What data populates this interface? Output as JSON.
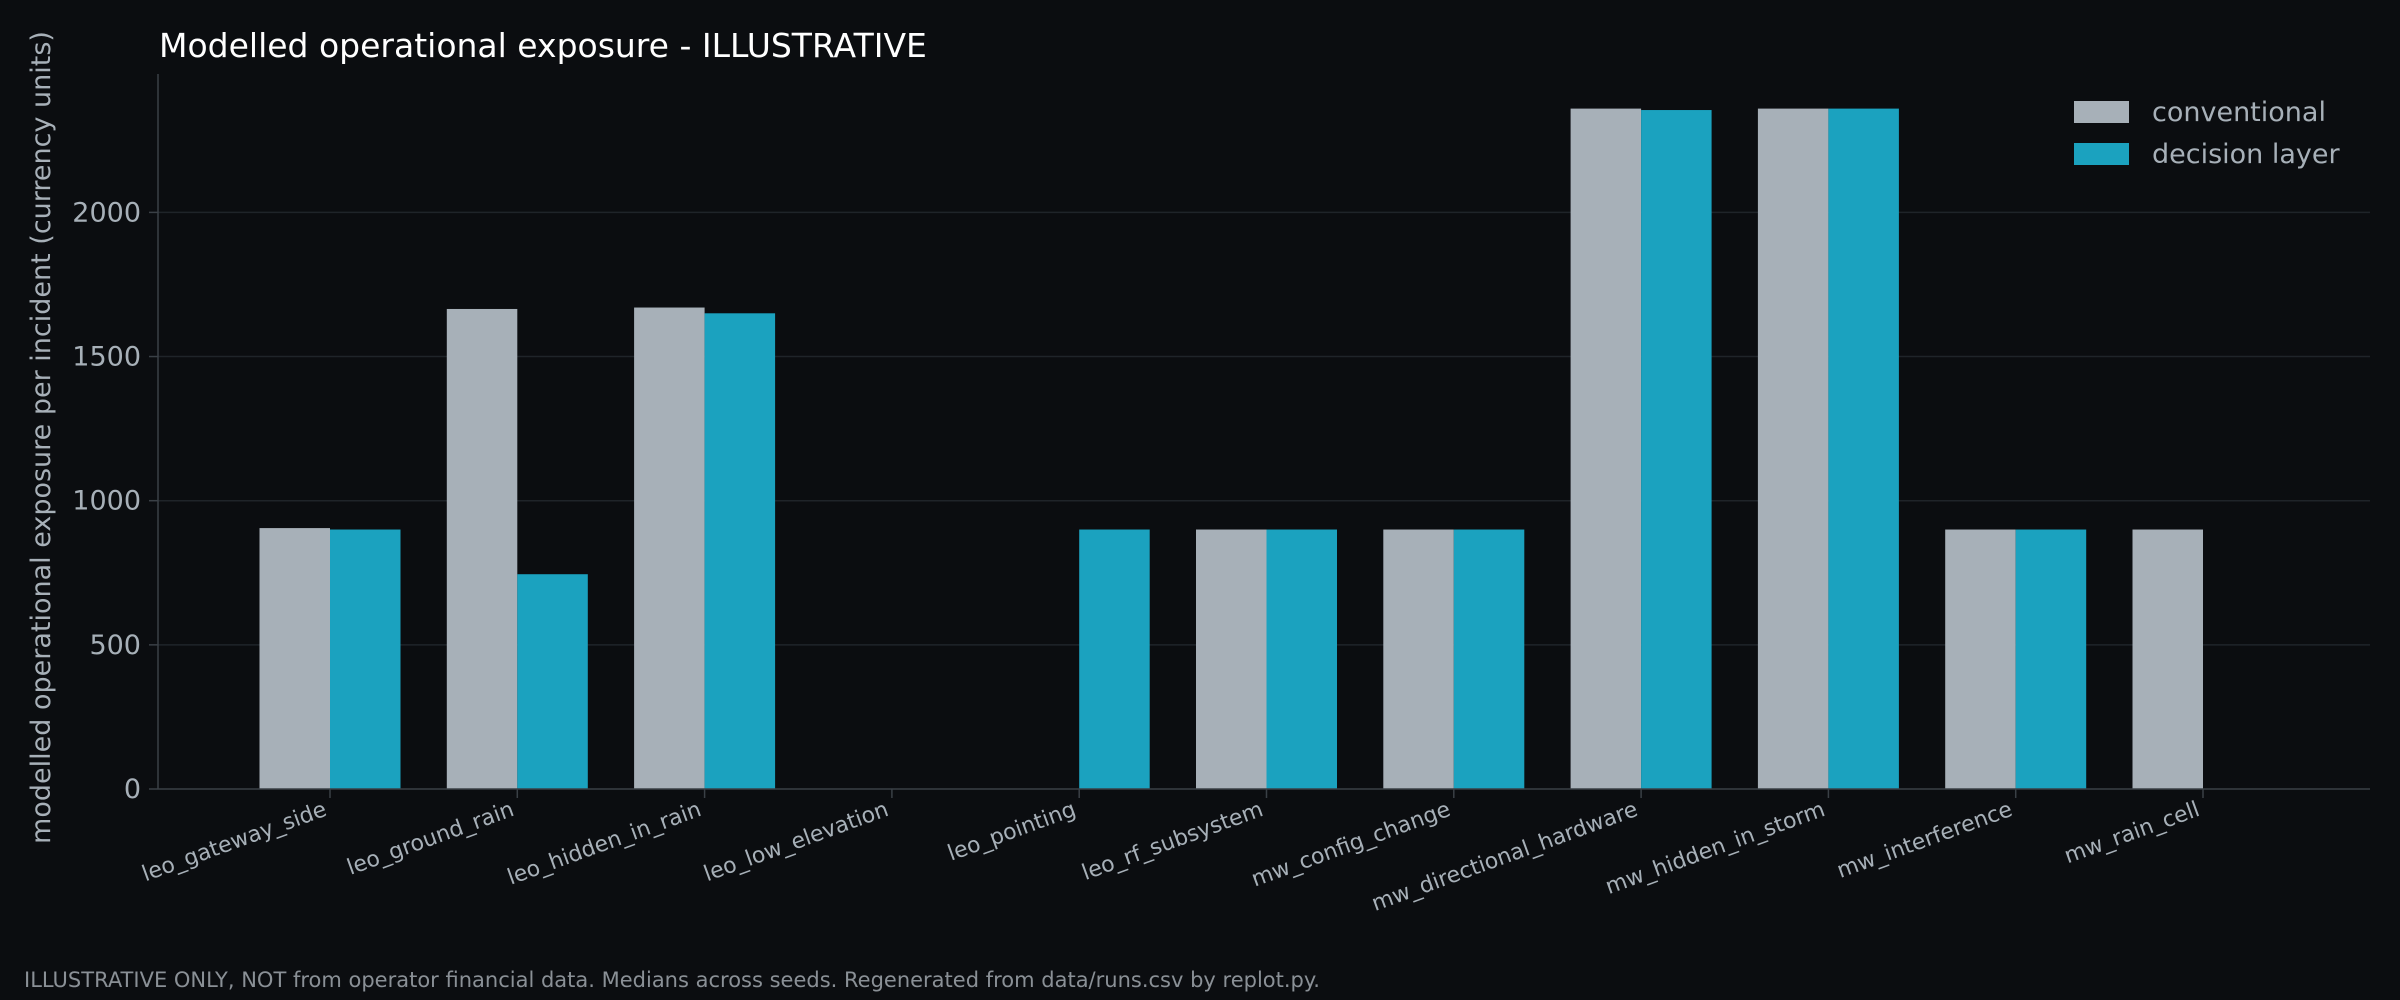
{
  "chart_data": {
    "type": "bar",
    "title": "Modelled operational exposure - ILLUSTRATIVE",
    "xlabel": "",
    "ylabel": "modelled operational exposure per incident (currency units)",
    "categories": [
      "leo_gateway_side",
      "leo_ground_rain",
      "leo_hidden_in_rain",
      "leo_low_elevation",
      "leo_pointing",
      "leo_rf_subsystem",
      "mw_config_change",
      "mw_directional_hardware",
      "mw_hidden_in_storm",
      "mw_interference",
      "mw_rain_cell"
    ],
    "series": [
      {
        "name": "conventional",
        "color": "#a7b0b8",
        "values": [
          905,
          1665,
          1670,
          0,
          0,
          900,
          900,
          2360,
          2360,
          900,
          900
        ]
      },
      {
        "name": "decision layer",
        "color": "#1ba2bf",
        "values": [
          900,
          745,
          1650,
          0,
          900,
          900,
          900,
          2355,
          2360,
          900,
          0
        ]
      }
    ],
    "ylim": [
      0,
      2480
    ],
    "yticks": [
      0,
      500,
      1000,
      1500,
      2000
    ],
    "grid": true,
    "legend_position": "top-right"
  },
  "footnote": "ILLUSTRATIVE ONLY, NOT from operator financial data. Medians across seeds. Regenerated from data/runs.csv by replot.py.",
  "colors": {
    "background": "#0b0d10",
    "text": "#a7b0b8",
    "title": "#ffffff",
    "grid": "#1f2429",
    "axis": "#3a4046"
  }
}
